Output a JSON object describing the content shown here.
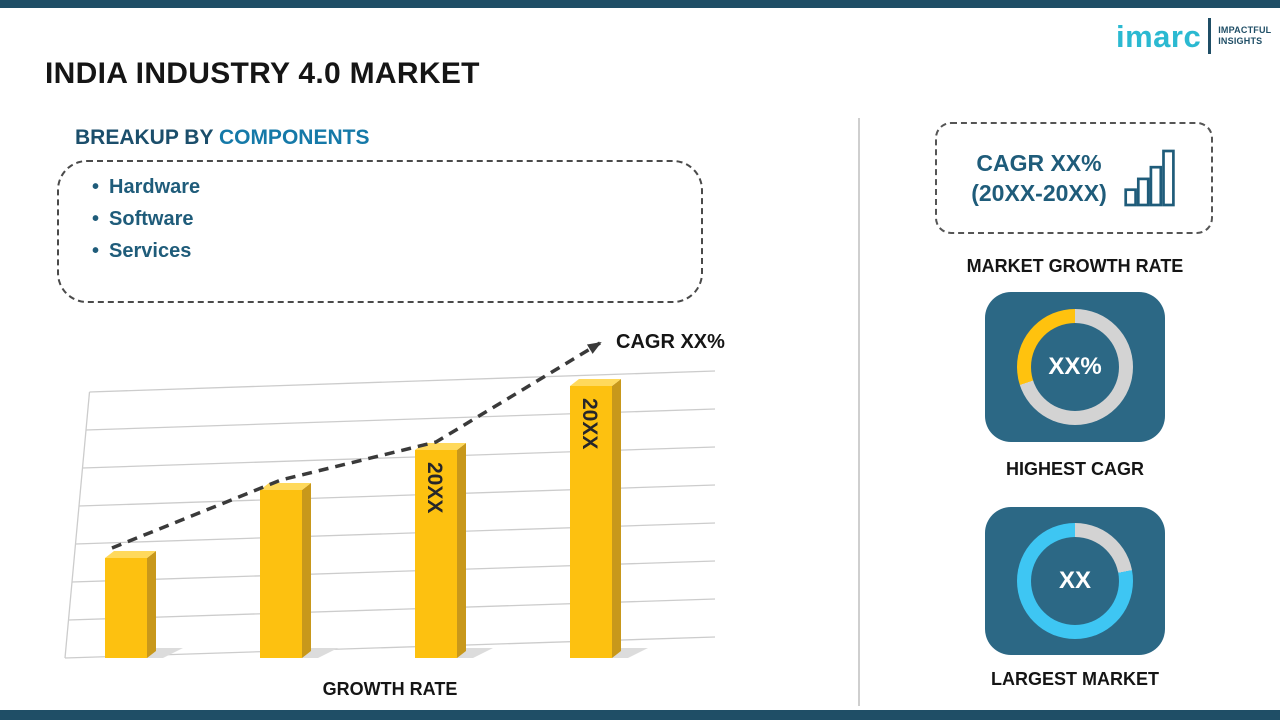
{
  "header": {
    "title": "INDIA INDUSTRY 4.0 MARKET",
    "logo": {
      "brand": "imarc",
      "tagline": [
        "IMPACTFUL",
        "INSIGHTS"
      ]
    }
  },
  "breakup": {
    "heading_prefix": "BREAKUP BY",
    "heading_highlight": "COMPONENTS",
    "items": [
      "Hardware",
      "Software",
      "Services"
    ]
  },
  "chart_data": [
    {
      "type": "bar",
      "title": "",
      "values": [
        25,
        42,
        52,
        68
      ],
      "bar_labels": [
        "",
        "",
        "20XX",
        "20XX"
      ],
      "xlabel": "GROWTH RATE",
      "annotation": "CAGR XX%",
      "trend": "dashed-arrow-increasing",
      "grid": true,
      "bar_color": "#FDC110",
      "bar_side_color": "#C8981B",
      "bar_top_color": "#FFD95C",
      "shadow_color": "#dcdcdc"
    },
    {
      "type": "donut",
      "center_label": "XX%",
      "caption": "HIGHEST CAGR",
      "accent": "#FFC20E",
      "track": "#D3D3D3",
      "accent_portion": 30
    },
    {
      "type": "donut",
      "center_label": "XX",
      "caption": "LARGEST MARKET",
      "accent": "#3EC6F3",
      "track": "#D3D3D3",
      "accent_portion": 78
    }
  ],
  "sidebar": {
    "growth_box": {
      "line1": "CAGR XX%",
      "line2": "(20XX-20XX)"
    },
    "growth_caption": "MARKET GROWTH RATE"
  },
  "colors": {
    "navy": "#1F4E66",
    "card_navy": "#2C6885",
    "text_navy": "#1F5C7A",
    "heading_blue": "#1579A8",
    "logo_cyan": "#2BB9D1"
  }
}
